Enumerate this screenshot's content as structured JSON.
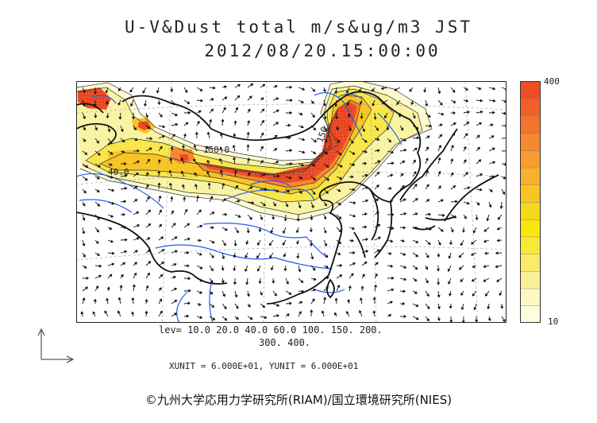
{
  "title": "U-V&Dust total m/s&ug/m3 JST",
  "timestamp": "2012/08/20.15:00:00",
  "legend": {
    "max_label": "400",
    "min_label": "10",
    "colors": [
      "#fdfde0",
      "#fbf8c4",
      "#f9f19a",
      "#f8ec6a",
      "#f8e838",
      "#f8e60c",
      "#f8d81a",
      "#f8c426",
      "#f8b02e",
      "#f89c30",
      "#f6882e",
      "#f4742c",
      "#f2602a",
      "#f04c26"
    ]
  },
  "levels_line1": "lev= 10.0 20.0 40.0 60.0 100. 150. 200.",
  "levels_line2": "300. 400.",
  "units": "XUNIT = 6.000E+01, YUNIT = 6.000E+01",
  "contour_labels": [
    "150.0",
    "40.0",
    "150"
  ],
  "copyright": "©九州大学応用力学研究所(RIAM)/国立環境研究所(NIES)"
}
